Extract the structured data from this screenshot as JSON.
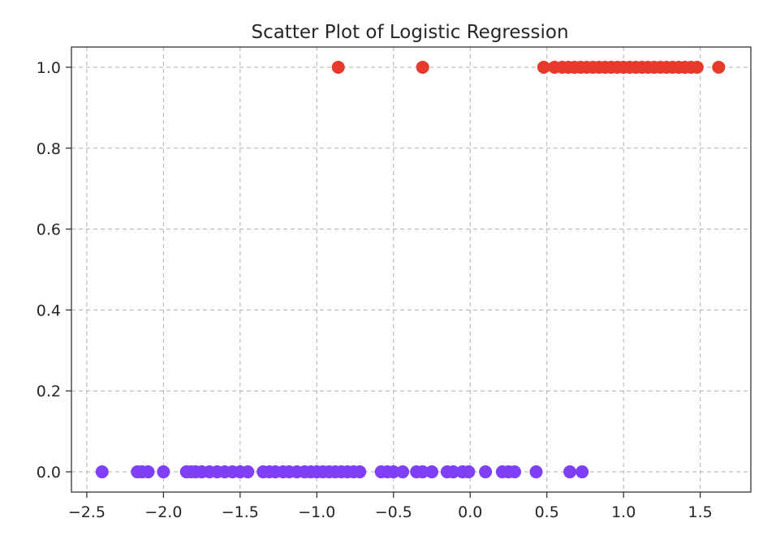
{
  "chart_data": {
    "type": "scatter",
    "title": "Scatter Plot of Logistic Regression",
    "xlabel": "",
    "ylabel": "",
    "xlim": [
      -2.6,
      1.83
    ],
    "ylim": [
      -0.05,
      1.05
    ],
    "xticks": [
      -2.5,
      -2.0,
      -1.5,
      -1.0,
      -0.5,
      0.0,
      0.5,
      1.0,
      1.5
    ],
    "xtick_labels": [
      "−2.5",
      "−2.0",
      "−1.5",
      "−1.0",
      "−0.5",
      "0.0",
      "0.5",
      "1.0",
      "1.5"
    ],
    "yticks": [
      0.0,
      0.2,
      0.4,
      0.6,
      0.8,
      1.0
    ],
    "ytick_labels": [
      "0.0",
      "0.2",
      "0.4",
      "0.6",
      "0.8",
      "1.0"
    ],
    "grid": true,
    "grid_style": "dashed",
    "colormap": "rainbow",
    "colors": {
      "class_0": "#7f3ff5",
      "class_1": "#e83a2a",
      "grid": "#b0b0b0",
      "text": "#262626"
    },
    "series": [
      {
        "values": [
          {
            "x": -2.4,
            "y": 0
          },
          {
            "x": -2.17,
            "y": 0
          },
          {
            "x": -2.14,
            "y": 0
          },
          {
            "x": -2.1,
            "y": 0
          },
          {
            "x": -2.0,
            "y": 0
          },
          {
            "x": -1.85,
            "y": 0
          },
          {
            "x": -1.82,
            "y": 0
          },
          {
            "x": -1.79,
            "y": 0
          },
          {
            "x": -1.75,
            "y": 0
          },
          {
            "x": -1.7,
            "y": 0
          },
          {
            "x": -1.65,
            "y": 0
          },
          {
            "x": -1.6,
            "y": 0
          },
          {
            "x": -1.55,
            "y": 0
          },
          {
            "x": -1.5,
            "y": 0
          },
          {
            "x": -1.45,
            "y": 0
          },
          {
            "x": -1.35,
            "y": 0
          },
          {
            "x": -1.31,
            "y": 0
          },
          {
            "x": -1.27,
            "y": 0
          },
          {
            "x": -1.22,
            "y": 0
          },
          {
            "x": -1.18,
            "y": 0
          },
          {
            "x": -1.13,
            "y": 0
          },
          {
            "x": -1.08,
            "y": 0
          },
          {
            "x": -1.04,
            "y": 0
          },
          {
            "x": -1.0,
            "y": 0
          },
          {
            "x": -0.96,
            "y": 0
          },
          {
            "x": -0.92,
            "y": 0
          },
          {
            "x": -0.88,
            "y": 0
          },
          {
            "x": -0.84,
            "y": 0
          },
          {
            "x": -0.8,
            "y": 0
          },
          {
            "x": -0.76,
            "y": 0
          },
          {
            "x": -0.72,
            "y": 0
          },
          {
            "x": -0.58,
            "y": 0
          },
          {
            "x": -0.54,
            "y": 0
          },
          {
            "x": -0.5,
            "y": 0
          },
          {
            "x": -0.44,
            "y": 0
          },
          {
            "x": -0.35,
            "y": 0
          },
          {
            "x": -0.31,
            "y": 0
          },
          {
            "x": -0.25,
            "y": 0
          },
          {
            "x": -0.15,
            "y": 0
          },
          {
            "x": -0.11,
            "y": 0
          },
          {
            "x": -0.05,
            "y": 0
          },
          {
            "x": -0.01,
            "y": 0
          },
          {
            "x": 0.1,
            "y": 0
          },
          {
            "x": 0.21,
            "y": 0
          },
          {
            "x": 0.25,
            "y": 0
          },
          {
            "x": 0.29,
            "y": 0
          },
          {
            "x": 0.43,
            "y": 0
          },
          {
            "x": 0.65,
            "y": 0
          },
          {
            "x": 0.73,
            "y": 0
          }
        ]
      },
      {
        "values": [
          {
            "x": -0.86,
            "y": 1
          },
          {
            "x": -0.31,
            "y": 1
          },
          {
            "x": 0.48,
            "y": 1
          },
          {
            "x": 0.55,
            "y": 1
          },
          {
            "x": 0.6,
            "y": 1
          },
          {
            "x": 0.64,
            "y": 1
          },
          {
            "x": 0.68,
            "y": 1
          },
          {
            "x": 0.72,
            "y": 1
          },
          {
            "x": 0.76,
            "y": 1
          },
          {
            "x": 0.8,
            "y": 1
          },
          {
            "x": 0.84,
            "y": 1
          },
          {
            "x": 0.88,
            "y": 1
          },
          {
            "x": 0.92,
            "y": 1
          },
          {
            "x": 0.96,
            "y": 1
          },
          {
            "x": 1.0,
            "y": 1
          },
          {
            "x": 1.04,
            "y": 1
          },
          {
            "x": 1.08,
            "y": 1
          },
          {
            "x": 1.12,
            "y": 1
          },
          {
            "x": 1.16,
            "y": 1
          },
          {
            "x": 1.2,
            "y": 1
          },
          {
            "x": 1.24,
            "y": 1
          },
          {
            "x": 1.28,
            "y": 1
          },
          {
            "x": 1.32,
            "y": 1
          },
          {
            "x": 1.36,
            "y": 1
          },
          {
            "x": 1.4,
            "y": 1
          },
          {
            "x": 1.44,
            "y": 1
          },
          {
            "x": 1.48,
            "y": 1
          },
          {
            "x": 1.62,
            "y": 1
          }
        ]
      }
    ]
  }
}
